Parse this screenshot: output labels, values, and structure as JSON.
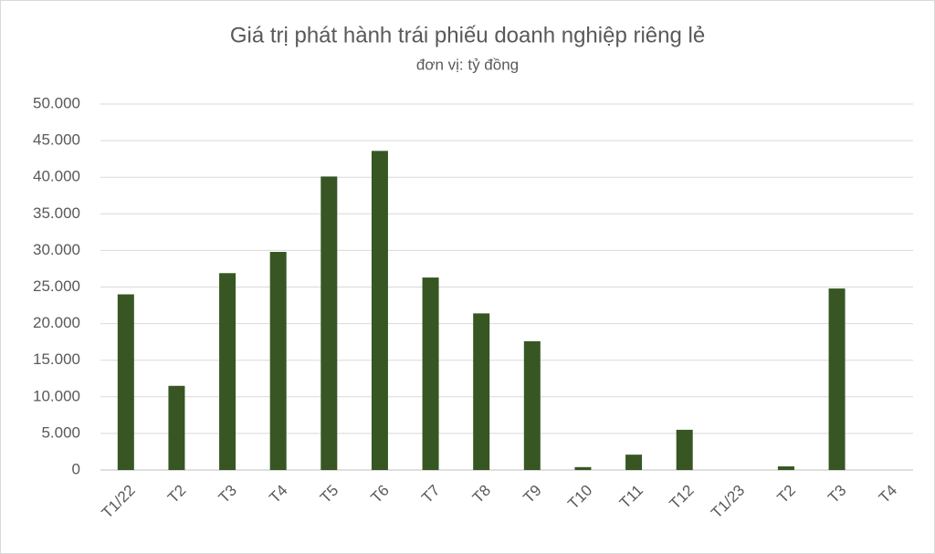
{
  "chart_data": {
    "type": "bar",
    "title": "Giá trị phát hành trái phiếu doanh nghiệp riêng lẻ",
    "subtitle": "đơn vị: tỷ đồng",
    "categories": [
      "T1/22",
      "T2",
      "T3",
      "T4",
      "T5",
      "T6",
      "T7",
      "T8",
      "T9",
      "T10",
      "T11",
      "T12",
      "T1/23",
      "T2",
      "T3",
      "T4"
    ],
    "values": [
      24000,
      11500,
      26900,
      29800,
      40100,
      43600,
      26300,
      21400,
      17600,
      400,
      2100,
      5500,
      0,
      500,
      24800,
      0
    ],
    "color": "#375623",
    "ylim": [
      0,
      50000
    ],
    "yticks": [
      0,
      {
        "value": 5000,
        "label": "5.000"
      },
      {
        "value": 10000,
        "label": "10.000"
      },
      {
        "value": 15000,
        "label": "15.000"
      },
      {
        "value": 20000,
        "label": "20.000"
      },
      {
        "value": 25000,
        "label": "25.000"
      },
      {
        "value": 30000,
        "label": "30.000"
      },
      {
        "value": 35000,
        "label": "35.000"
      },
      {
        "value": 40000,
        "label": "40.000"
      },
      {
        "value": 45000,
        "label": "45.000"
      },
      {
        "value": 50000,
        "label": "50.000"
      }
    ],
    "grid": true
  }
}
